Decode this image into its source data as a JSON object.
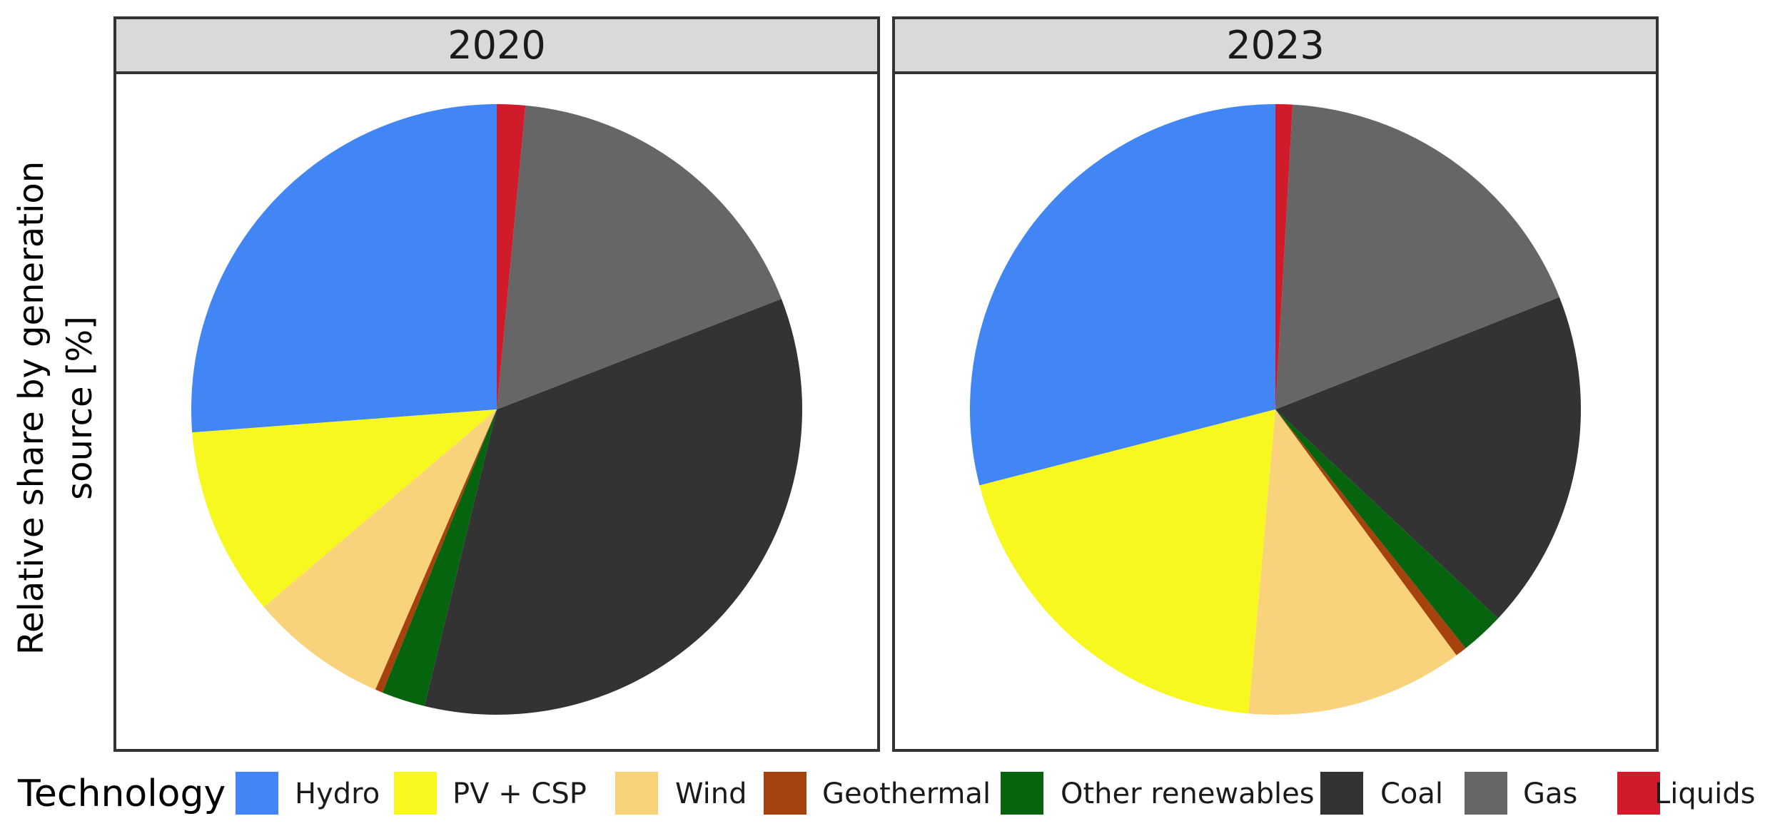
{
  "chart_data": {
    "type": "pie",
    "ylabel_lines": [
      "Relative share by generation",
      "source [%]"
    ],
    "legend": {
      "title": "Technology",
      "position": "bottom",
      "entries": [
        {
          "name": "Hydro",
          "color": "#4186F4"
        },
        {
          "name": "PV + CSP",
          "color": "#F8F821"
        },
        {
          "name": "Wind",
          "color": "#F9D37C"
        },
        {
          "name": "Geothermal",
          "color": "#A6420E"
        },
        {
          "name": "Other renewables",
          "color": "#05640D"
        },
        {
          "name": "Coal",
          "color": "#333333"
        },
        {
          "name": "Gas",
          "color": "#666666"
        },
        {
          "name": "Liquids",
          "color": "#CF1B2A"
        }
      ]
    },
    "panels": [
      {
        "title": "2020",
        "slices": [
          {
            "name": "Hydro",
            "value": 26.2
          },
          {
            "name": "PV + CSP",
            "value": 10.0
          },
          {
            "name": "Wind",
            "value": 7.3
          },
          {
            "name": "Geothermal",
            "value": 0.4
          },
          {
            "name": "Other renewables",
            "value": 2.3
          },
          {
            "name": "Coal",
            "value": 34.7
          },
          {
            "name": "Gas",
            "value": 17.6
          },
          {
            "name": "Liquids",
            "value": 1.5
          }
        ]
      },
      {
        "title": "2023",
        "slices": [
          {
            "name": "Hydro",
            "value": 29.0
          },
          {
            "name": "PV + CSP",
            "value": 19.6
          },
          {
            "name": "Wind",
            "value": 11.5
          },
          {
            "name": "Geothermal",
            "value": 0.6
          },
          {
            "name": "Other renewables",
            "value": 2.3
          },
          {
            "name": "Coal",
            "value": 18.0
          },
          {
            "name": "Gas",
            "value": 18.1
          },
          {
            "name": "Liquids",
            "value": 0.9
          }
        ]
      }
    ]
  }
}
